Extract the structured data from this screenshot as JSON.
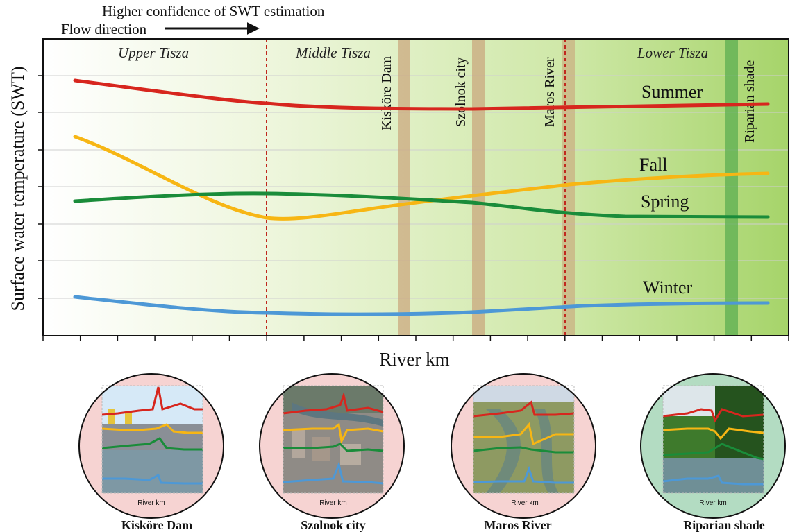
{
  "header": {
    "confidence_label": "Higher confidence of SWT estimation",
    "flow_label": "Flow direction"
  },
  "axes": {
    "ylabel": "Surface water temperature (SWT)",
    "xlabel": "River km"
  },
  "sections": {
    "upper": "Upper Tisza",
    "middle": "Middle Tisza",
    "lower": "Lower Tisza"
  },
  "features": [
    {
      "label": "Kisköre Dam",
      "color": "#d2b48c"
    },
    {
      "label": "Szolnok city",
      "color": "#d2b48c"
    },
    {
      "label": "Maros River",
      "color": "#d2b48c"
    },
    {
      "label": "Riparian shade",
      "color": "#5cb85c"
    }
  ],
  "seasons": [
    {
      "name": "Summer",
      "color": "#d7261e"
    },
    {
      "name": "Fall",
      "color": "#f7b614"
    },
    {
      "name": "Spring",
      "color": "#1a8c3a"
    },
    {
      "name": "Winter",
      "color": "#4d98d6"
    }
  ],
  "insets": [
    {
      "title": "Kisköre Dam",
      "xlabel": "River km",
      "circle_color": "#f6d3d2"
    },
    {
      "title": "Szolnok city",
      "xlabel": "River km",
      "circle_color": "#f6d3d2"
    },
    {
      "title": "Maros River",
      "xlabel": "River km",
      "circle_color": "#f6d3d2"
    },
    {
      "title": "Riparian shade",
      "xlabel": "River km",
      "circle_color": "#b3dcc2"
    }
  ]
}
